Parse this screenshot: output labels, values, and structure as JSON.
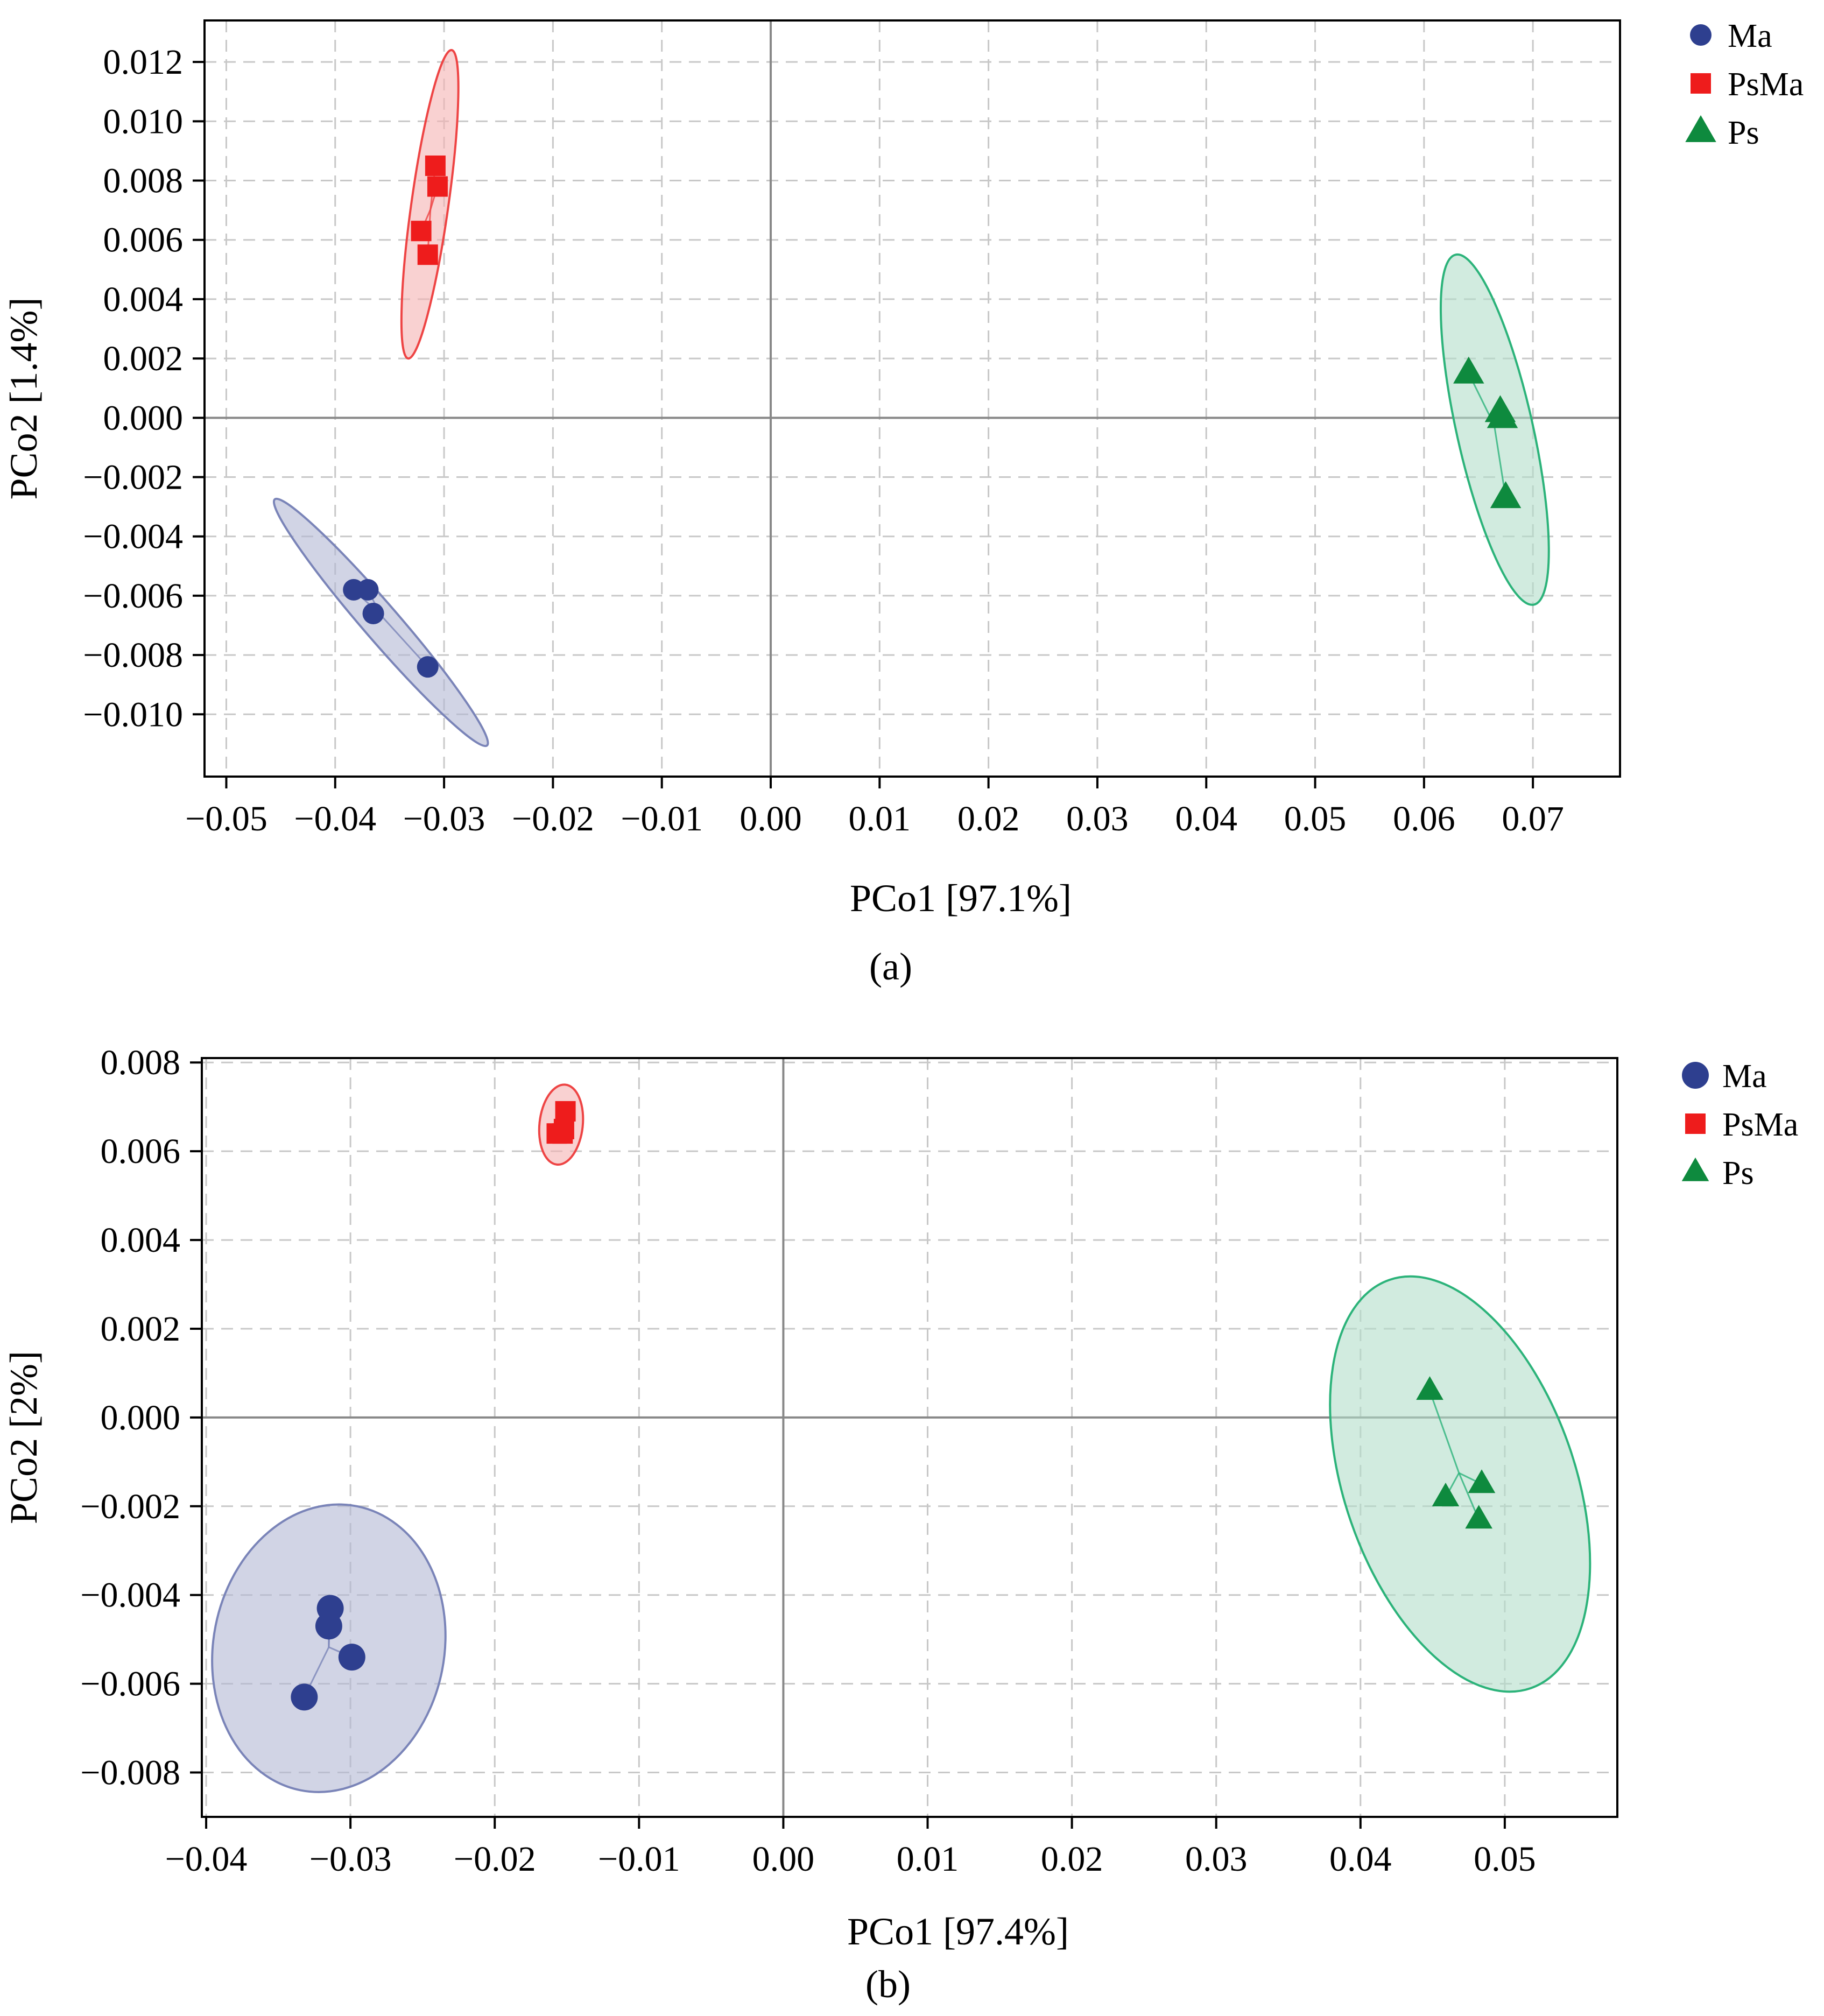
{
  "chart_data": [
    {
      "type": "scatter",
      "panel_label": "(a)",
      "xlabel": "PCo1 [97.1%]",
      "ylabel": "PCo2 [1.4%]",
      "xlim": [
        -0.052,
        0.078
      ],
      "ylim": [
        -0.0121,
        0.0134
      ],
      "xticks": [
        "−0.05",
        "−0.04",
        "−0.03",
        "−0.02",
        "−0.01",
        "0.00",
        "0.01",
        "0.02",
        "0.03",
        "0.04",
        "0.05",
        "0.06",
        "0.07"
      ],
      "xtick_values": [
        -0.05,
        -0.04,
        -0.03,
        -0.02,
        -0.01,
        0,
        0.01,
        0.02,
        0.03,
        0.04,
        0.05,
        0.06,
        0.07
      ],
      "yticks": [
        "−0.010",
        "−0.008",
        "−0.006",
        "−0.004",
        "−0.002",
        "0.000",
        "0.002",
        "0.004",
        "0.006",
        "0.008",
        "0.010",
        "0.012"
      ],
      "ytick_values": [
        -0.01,
        -0.008,
        -0.006,
        -0.004,
        -0.002,
        0,
        0.002,
        0.004,
        0.006,
        0.008,
        0.01,
        0.012
      ],
      "grid": true,
      "legend_position": "top-right",
      "series": [
        {
          "name": "Ma",
          "marker": "circle",
          "color": "#2e3f8f",
          "fill": "#b3b8d4",
          "stroke": "#7a84b8",
          "points": [
            [
              -0.0383,
              -0.0058
            ],
            [
              -0.037,
              -0.0058
            ],
            [
              -0.0365,
              -0.0066
            ],
            [
              -0.0315,
              -0.0084
            ]
          ],
          "ellipse": {
            "center": [
              -0.0358,
              -0.0069
            ],
            "ends": [
              [
                -0.0455,
                -0.0025
              ],
              [
                -0.026,
                -0.0108
              ]
            ],
            "half_width": 0.00165
          }
        },
        {
          "name": "PsMa",
          "marker": "square",
          "color": "#ee1c1c",
          "fill": "#f5b3b3",
          "stroke": "#ee4444",
          "points": [
            [
              -0.0308,
              0.0085
            ],
            [
              -0.0306,
              0.0078
            ],
            [
              -0.0321,
              0.0063
            ],
            [
              -0.0315,
              0.0055
            ]
          ],
          "ellipse": {
            "center": [
              -0.0313,
              0.0072
            ],
            "ends": [
              [
                -0.0293,
                0.0124
              ],
              [
                -0.0333,
                0.002
              ]
            ],
            "half_width": 0.0017
          }
        },
        {
          "name": "Ps",
          "marker": "triangle",
          "color": "#0e8a3e",
          "fill": "#b3dec9",
          "stroke": "#2cb37a",
          "points": [
            [
              0.0641,
              0.0015
            ],
            [
              0.067,
              0.0002
            ],
            [
              0.0672,
              0.0
            ],
            [
              0.0675,
              -0.0027
            ]
          ],
          "ellipse": {
            "center": [
              0.0665,
              -0.0004
            ],
            "ends": [
              [
                0.063,
                0.0057
              ],
              [
                0.0702,
                -0.0061
              ]
            ],
            "half_width": 0.0035
          }
        }
      ]
    },
    {
      "type": "scatter",
      "panel_label": "(b)",
      "xlabel": "PCo1 [97.4%]",
      "ylabel": "PCo2 [2%]",
      "xlim": [
        -0.0403,
        0.0578
      ],
      "ylim": [
        -0.009,
        0.0081
      ],
      "xticks": [
        "−0.04",
        "−0.03",
        "−0.02",
        "−0.01",
        "0.00",
        "0.01",
        "0.02",
        "0.03",
        "0.04",
        "0.05"
      ],
      "xtick_values": [
        -0.04,
        -0.03,
        -0.02,
        -0.01,
        0,
        0.01,
        0.02,
        0.03,
        0.04,
        0.05
      ],
      "yticks": [
        "−0.008",
        "−0.006",
        "−0.004",
        "−0.002",
        "0.000",
        "0.002",
        "0.004",
        "0.006",
        "0.008"
      ],
      "ytick_values": [
        -0.008,
        -0.006,
        -0.004,
        -0.002,
        0,
        0.002,
        0.004,
        0.006,
        0.008
      ],
      "grid": true,
      "legend_position": "top-right",
      "series": [
        {
          "name": "Ma",
          "marker": "circle",
          "color": "#2e3f8f",
          "fill": "#b3b8d4",
          "stroke": "#7a84b8",
          "points": [
            [
              -0.0314,
              -0.0043
            ],
            [
              -0.0315,
              -0.0047
            ],
            [
              -0.0299,
              -0.0054
            ],
            [
              -0.0332,
              -0.0063
            ]
          ],
          "ellipse": {
            "center": [
              -0.0315,
              -0.0052
            ],
            "ends": [
              [
                -0.0295,
                -0.0019
              ],
              [
                -0.0334,
                -0.0083
              ]
            ],
            "half_width": 0.008
          }
        },
        {
          "name": "PsMa",
          "marker": "square",
          "color": "#ee1c1c",
          "fill": "#f5b3b3",
          "stroke": "#ee4444",
          "points": [
            [
              -0.0151,
              0.0069
            ],
            [
              -0.0152,
              0.0065
            ],
            [
              -0.0157,
              0.0064
            ],
            [
              -0.0153,
              0.0064
            ]
          ],
          "ellipse": {
            "center": [
              -0.0154,
              0.0066
            ],
            "ends": [
              [
                -0.0151,
                0.0075
              ],
              [
                -0.0157,
                0.0057
              ]
            ],
            "half_width": 0.0015
          }
        },
        {
          "name": "Ps",
          "marker": "triangle",
          "color": "#0e8a3e",
          "fill": "#b3dec9",
          "stroke": "#2cb37a",
          "points": [
            [
              0.0448,
              0.0006
            ],
            [
              0.0459,
              -0.0018
            ],
            [
              0.0484,
              -0.0015
            ],
            [
              0.0482,
              -0.0023
            ]
          ],
          "ellipse": {
            "center": [
              0.0469,
              -0.0015
            ],
            "ends": [
              [
                0.042,
                0.0031
              ],
              [
                0.0518,
                -0.0061
              ]
            ],
            "half_width": 0.008
          }
        }
      ]
    }
  ]
}
